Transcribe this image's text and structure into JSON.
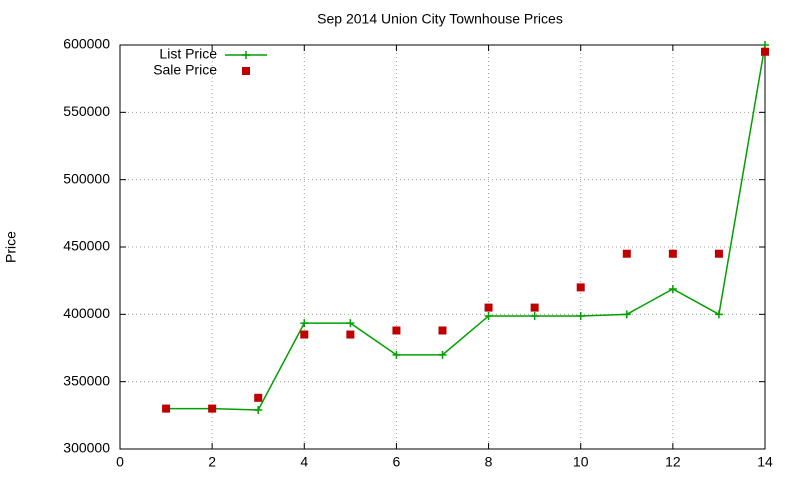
{
  "chart_data": {
    "type": "line",
    "title": "Sep 2014 Union City Townhouse Prices",
    "y_label": "Price",
    "x": [
      1,
      2,
      3,
      4,
      5,
      6,
      7,
      8,
      9,
      10,
      11,
      12,
      13,
      14
    ],
    "series": [
      {
        "name": "List Price",
        "color": "#00a000",
        "mode": "lines+markers",
        "values": [
          330000,
          330000,
          329000,
          393500,
          393500,
          369900,
          369900,
          398800,
          398800,
          398800,
          400000,
          418800,
          400000,
          600000
        ]
      },
      {
        "name": "Sale Price",
        "color": "#c00000",
        "mode": "markers",
        "values": [
          330000,
          330000,
          338000,
          385000,
          385000,
          388000,
          388000,
          405000,
          405000,
          420000,
          445000,
          445000,
          445000,
          595000
        ]
      }
    ],
    "xlim": [
      0,
      14
    ],
    "xticks": [
      0,
      2,
      4,
      6,
      8,
      10,
      12,
      14
    ],
    "ylim": [
      300000,
      600000
    ],
    "yticks": [
      300000,
      350000,
      400000,
      450000,
      500000,
      550000,
      600000
    ],
    "grid": true,
    "legend": "top-left"
  }
}
